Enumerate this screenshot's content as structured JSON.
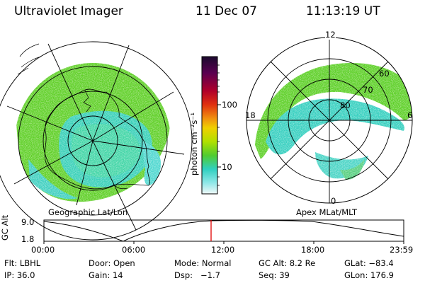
{
  "header": {
    "instrument": "Ultraviolet Imager",
    "date": "11 Dec 07",
    "time": "11:13:19 UT"
  },
  "left_panel": {
    "caption": "Geographic Lat/Lon"
  },
  "right_panel": {
    "caption": "Apex MLat/MLT",
    "mlt_labels": {
      "top": "12",
      "left": "18",
      "right": "6",
      "bottom": "0"
    },
    "lat_labels": [
      "60",
      "70",
      "80"
    ]
  },
  "colorbar": {
    "unit_label": "photon cm⁻²s⁻¹",
    "ticks": [
      "100",
      "10"
    ],
    "colors": [
      "#1a0a2e",
      "#5a0050",
      "#b0002a",
      "#e03010",
      "#f08010",
      "#f0c000",
      "#c8e000",
      "#80d820",
      "#40c850",
      "#30d0c0",
      "#70e0e0",
      "#d0f0f0"
    ]
  },
  "altitude_strip": {
    "axis_label": "GC Alt",
    "y_ticks": [
      "9.0",
      "1.8"
    ],
    "x_ticks": [
      "00:00",
      "06:00",
      "12:00",
      "18:00",
      "23:59"
    ],
    "current_time_marker_color": "#e00000"
  },
  "status": {
    "row1": [
      {
        "key": "Flt:",
        "value": "LBHL"
      },
      {
        "key": "Door:",
        "value": "Open"
      },
      {
        "key": "Mode:",
        "value": "Normal"
      },
      {
        "key": "GC Alt:",
        "value": "8.2 Re"
      },
      {
        "key": "GLat:",
        "value": "−83.4"
      }
    ],
    "row2": [
      {
        "key": "IP:",
        "value": "36.0"
      },
      {
        "key": "Gain:",
        "value": "14"
      },
      {
        "key": "Dsp:",
        "value": "−1.7"
      },
      {
        "key": "Seq:",
        "value": "39"
      },
      {
        "key": "GLon:",
        "value": "176.9"
      }
    ]
  },
  "colors": {
    "aurora_green": "#58d030",
    "aurora_cyan": "#38d8c8",
    "background": "#ffffff"
  }
}
